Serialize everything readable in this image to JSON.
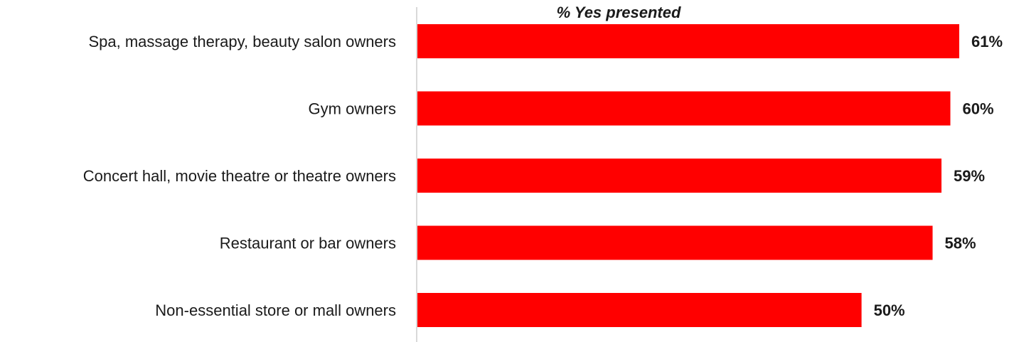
{
  "chart_data": {
    "type": "bar",
    "orientation": "horizontal",
    "title": "% Yes presented",
    "categories": [
      "Spa, massage therapy, beauty salon owners",
      "Gym owners",
      "Concert hall, movie theatre or theatre owners",
      "Restaurant or bar owners",
      "Non-essential store or mall owners"
    ],
    "values": [
      61,
      60,
      59,
      58,
      50
    ],
    "value_labels": [
      "61%",
      "60%",
      "59%",
      "58%",
      "50%"
    ],
    "xlabel": "",
    "ylabel": "",
    "xlim": [
      0,
      61
    ],
    "grid": false,
    "legend": "none",
    "bar_color": "#ff0000"
  }
}
